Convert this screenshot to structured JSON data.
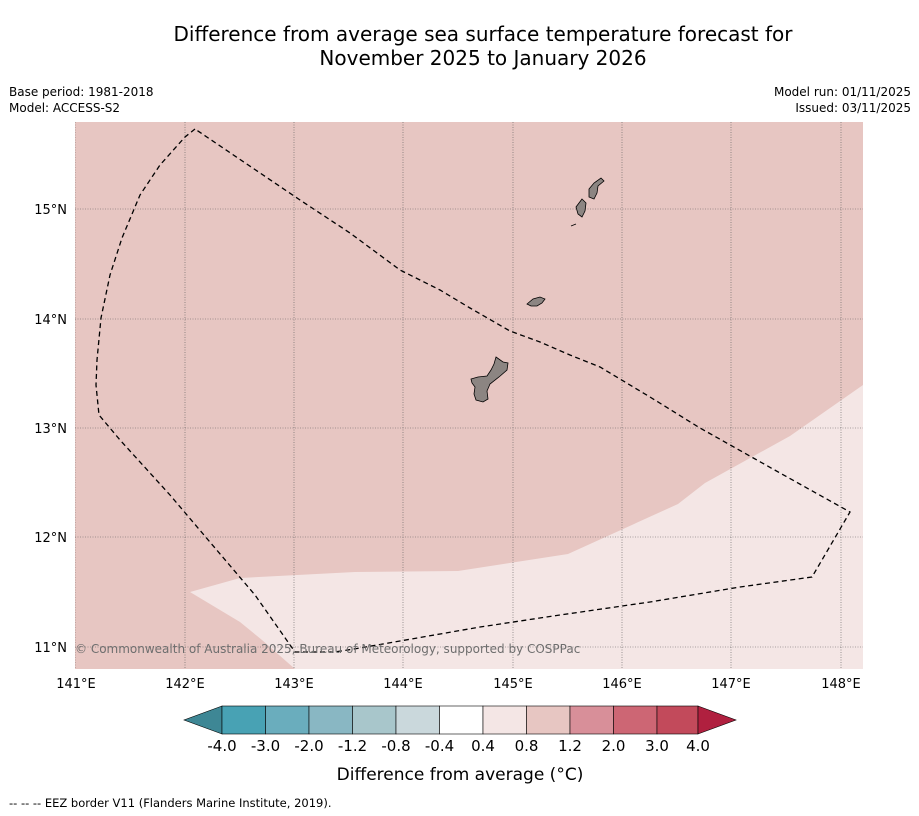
{
  "title": {
    "line1": "Difference from average sea surface temperature forecast for",
    "line2": "November 2025 to January 2026"
  },
  "meta": {
    "base_period": "Base period: 1981-2018",
    "model": "Model: ACCESS-S2",
    "model_run": "Model run: 01/11/2025",
    "issued": "Issued: 03/11/2025"
  },
  "map": {
    "lon_ticks": [
      "141°E",
      "142°E",
      "143°E",
      "144°E",
      "145°E",
      "146°E",
      "147°E",
      "148°E"
    ],
    "lat_ticks": [
      "15°N",
      "14°N",
      "13°N",
      "12°N",
      "11°N"
    ],
    "copyright": "© Commonwealth of Australia 2025, Bureau of Meteorology, supported by COSPPac",
    "colors": {
      "land": "#8c8582",
      "anomaly_0_4_to_0_8": "#f4e6e5",
      "anomaly_0_8_to_1_2": "#e7c6c2"
    }
  },
  "colorbar": {
    "labels": [
      "-4.0",
      "-3.0",
      "-2.0",
      "-1.2",
      "-0.8",
      "-0.4",
      "0.4",
      "0.8",
      "1.2",
      "2.0",
      "3.0",
      "4.0"
    ],
    "colors": [
      "#48a2b4",
      "#6aadbd",
      "#89b7c3",
      "#a8c6cb",
      "#cad8dc",
      "#ffffff",
      "#f4e6e5",
      "#e7c6c2",
      "#d88f99",
      "#cd6674",
      "#c24a5b"
    ],
    "under_color": "#3e8795",
    "over_color": "#b0203f",
    "title": "Difference from average (",
    "unit": "°C",
    "title_end": ")"
  },
  "footer": {
    "legend": "--  --  -- EEZ border V11 (Flanders Marine Institute, 2019)."
  }
}
